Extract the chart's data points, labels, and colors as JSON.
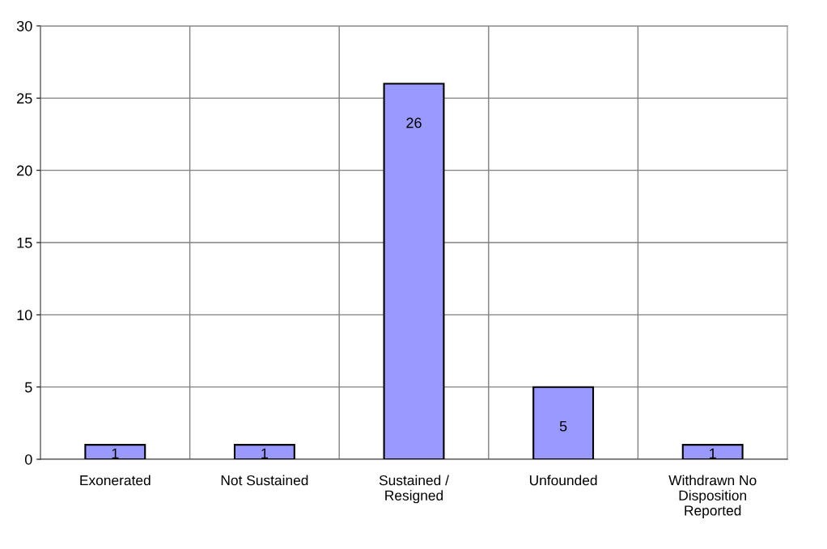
{
  "chart_data": {
    "type": "bar",
    "categories": [
      "Exonerated",
      "Not Sustained",
      "Sustained /\nResigned",
      "Unfounded",
      "Withdrawn No\nDisposition\nReported"
    ],
    "values": [
      1,
      1,
      26,
      5,
      1
    ],
    "color": "#9999ff",
    "ylim": [
      0,
      30
    ],
    "yticks": [
      0,
      5,
      10,
      15,
      20,
      25,
      30
    ],
    "grid": true,
    "data_labels": true
  }
}
